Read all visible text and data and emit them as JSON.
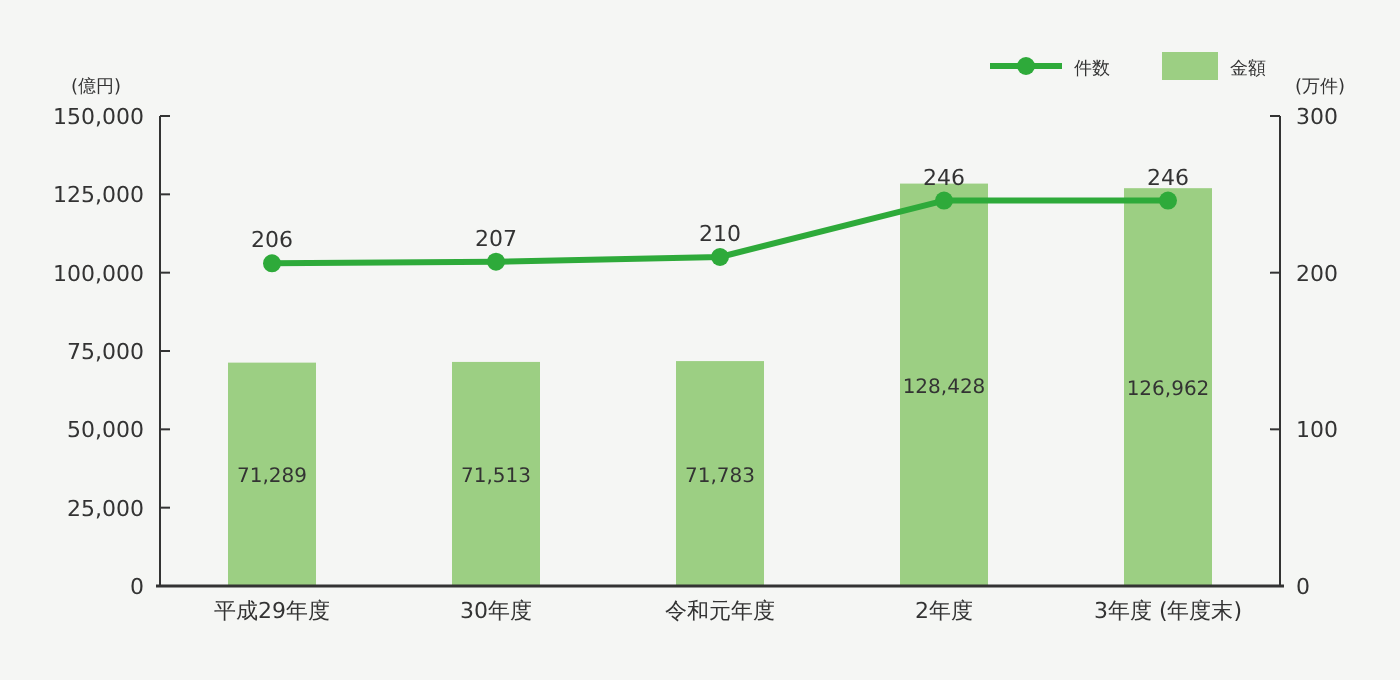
{
  "chart_data": {
    "type": "bar",
    "categories": [
      "平成29年度",
      "30年度",
      "令和元年度",
      "2年度",
      "3年度 (年度末)"
    ],
    "series": [
      {
        "name": "件数",
        "type": "line",
        "axis": "y2",
        "color": "#2eaa3a",
        "marker": "circle",
        "values": [
          206,
          207,
          210,
          246,
          246
        ],
        "value_labels": [
          "206",
          "207",
          "210",
          "246",
          "246"
        ]
      },
      {
        "name": "金額",
        "color": "#9ccf83",
        "values": [
          71289,
          71513,
          71783,
          128428,
          126962
        ],
        "value_labels": [
          "71,289",
          "71,513",
          "71,783",
          "128,428",
          "126,962"
        ]
      }
    ],
    "ylabel": "(億円)",
    "y2label": "(万件)",
    "ylim": [
      0,
      150000
    ],
    "yticks": [
      {
        "value": 0,
        "label": "0"
      },
      {
        "value": 25000,
        "label": "25,000"
      },
      {
        "value": 50000,
        "label": "50,000"
      },
      {
        "value": 75000,
        "label": "75,000"
      },
      {
        "value": 100000,
        "label": "100,000"
      },
      {
        "value": 125000,
        "label": "125,000"
      },
      {
        "value": 150000,
        "label": "150,000"
      }
    ],
    "y2lim": [
      0,
      300
    ],
    "y2ticks": [
      0,
      100,
      200,
      300
    ],
    "legend": "top right",
    "grid": false
  }
}
